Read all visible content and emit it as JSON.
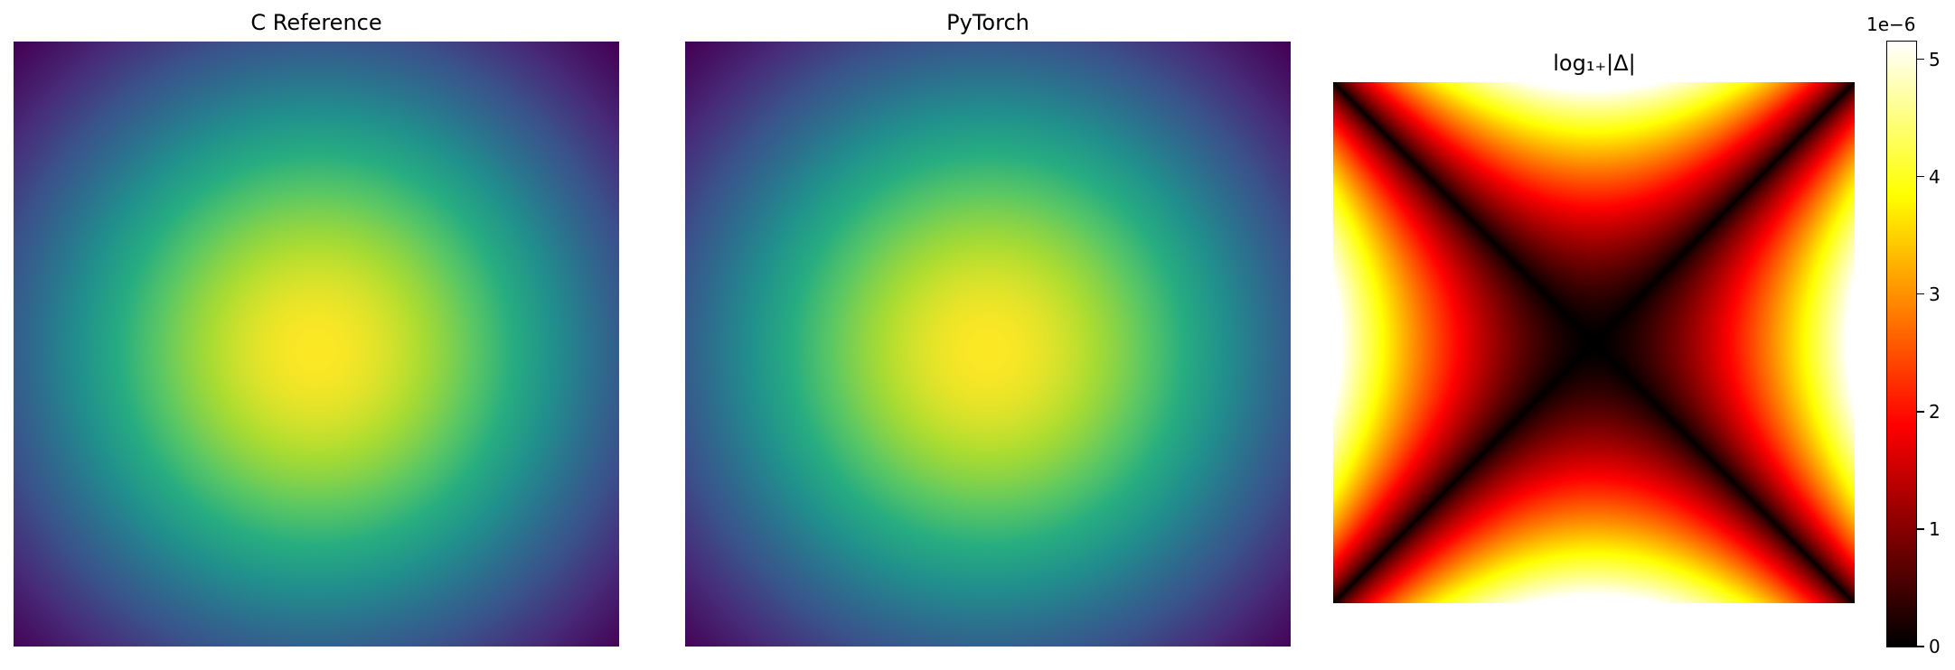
{
  "chart_data": [
    {
      "type": "heatmap",
      "title": "C Reference",
      "colormap": "viridis",
      "field": "radial-bump",
      "axes_visible": false
    },
    {
      "type": "heatmap",
      "title": "PyTorch",
      "colormap": "viridis",
      "field": "radial-bump",
      "axes_visible": false
    },
    {
      "type": "heatmap",
      "title": "log₁₊|Δ|",
      "colormap": "hot",
      "field": "diagonal-saddle-difference",
      "axes_visible": false,
      "colorbar": {
        "offset_label": "1e−6",
        "ticks": [
          0,
          1,
          2,
          3,
          4,
          5
        ],
        "tick_labels": [
          "0",
          "1",
          "2",
          "3",
          "4",
          "5"
        ],
        "range": [
          0,
          5.15
        ],
        "scale_factor": 1e-06
      }
    }
  ]
}
